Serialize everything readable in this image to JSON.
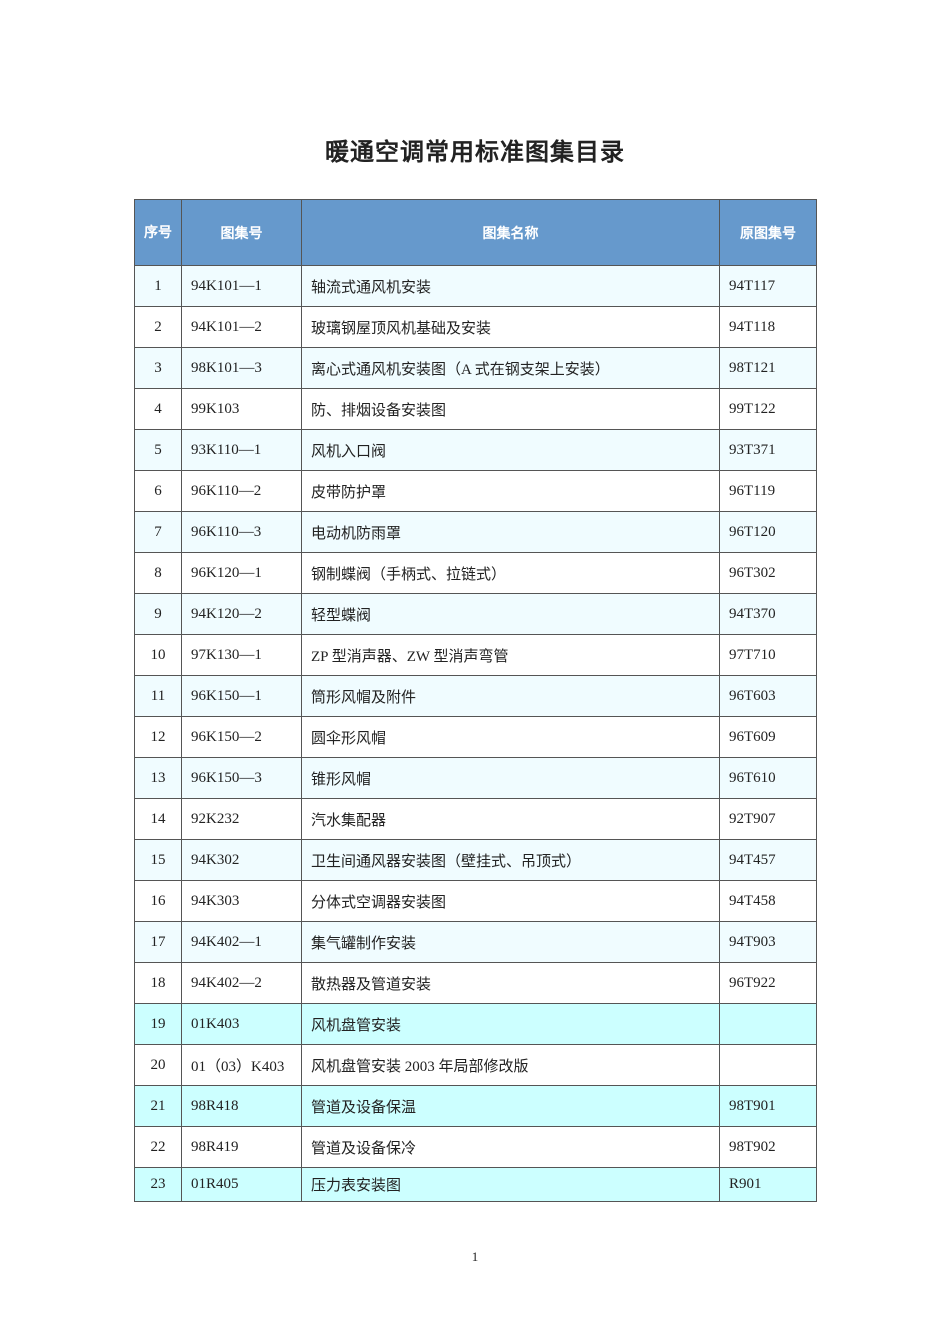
{
  "title": "暖通空调常用标准图集目录",
  "headers": [
    "序号",
    "图集号",
    "图集名称",
    "原图集号"
  ],
  "rows": [
    [
      "1",
      "94K101—1",
      "轴流式通风机安装",
      "94T117"
    ],
    [
      "2",
      "94K101—2",
      "玻璃钢屋顶风机基础及安装",
      "94T118"
    ],
    [
      "3",
      "98K101—3",
      "离心式通风机安装图（A 式在钢支架上安装）",
      "98T121"
    ],
    [
      "4",
      "99K103",
      "防、排烟设备安装图",
      "99T122"
    ],
    [
      "5",
      "93K110—1",
      "风机入口阀",
      "93T371"
    ],
    [
      "6",
      "96K110—2",
      "皮带防护罩",
      "96T119"
    ],
    [
      "7",
      "96K110—3",
      "电动机防雨罩",
      "96T120"
    ],
    [
      "8",
      "96K120—1",
      "钢制蝶阀（手柄式、拉链式）",
      "96T302"
    ],
    [
      "9",
      "94K120—2",
      "轻型蝶阀",
      "94T370"
    ],
    [
      "10",
      "97K130—1",
      "ZP 型消声器、ZW 型消声弯管",
      "97T710"
    ],
    [
      "11",
      "96K150—1",
      "筒形风帽及附件",
      "96T603"
    ],
    [
      "12",
      "96K150—2",
      "圆伞形风帽",
      "96T609"
    ],
    [
      "13",
      "96K150—3",
      "锥形风帽",
      "96T610"
    ],
    [
      "14",
      "92K232",
      "汽水集配器",
      "92T907"
    ],
    [
      "15",
      "94K302",
      "卫生间通风器安装图（壁挂式、吊顶式）",
      "94T457"
    ],
    [
      "16",
      "94K303",
      "分体式空调器安装图",
      "94T458"
    ],
    [
      "17",
      "94K402—1",
      "集气罐制作安装",
      "94T903"
    ],
    [
      "18",
      "94K402—2",
      "散热器及管道安装",
      "96T922"
    ],
    [
      "19",
      "01K403",
      "风机盘管安装",
      ""
    ],
    [
      "20",
      "01（03）K403",
      "风机盘管安装 2003 年局部修改版",
      ""
    ],
    [
      "21",
      "98R418",
      "管道及设备保温",
      "98T901"
    ],
    [
      "22",
      "98R419",
      "管道及设备保冷",
      "98T902"
    ],
    [
      "23",
      "01R405",
      "压力表安装图",
      "R901"
    ]
  ],
  "highlighted_rows": [
    "19",
    "21",
    "23"
  ],
  "colors": {
    "header_bg": "#6699cc",
    "odd_row_bg": "#f0fcff",
    "highlight_bg": "#ccffff"
  },
  "page_number": "1"
}
